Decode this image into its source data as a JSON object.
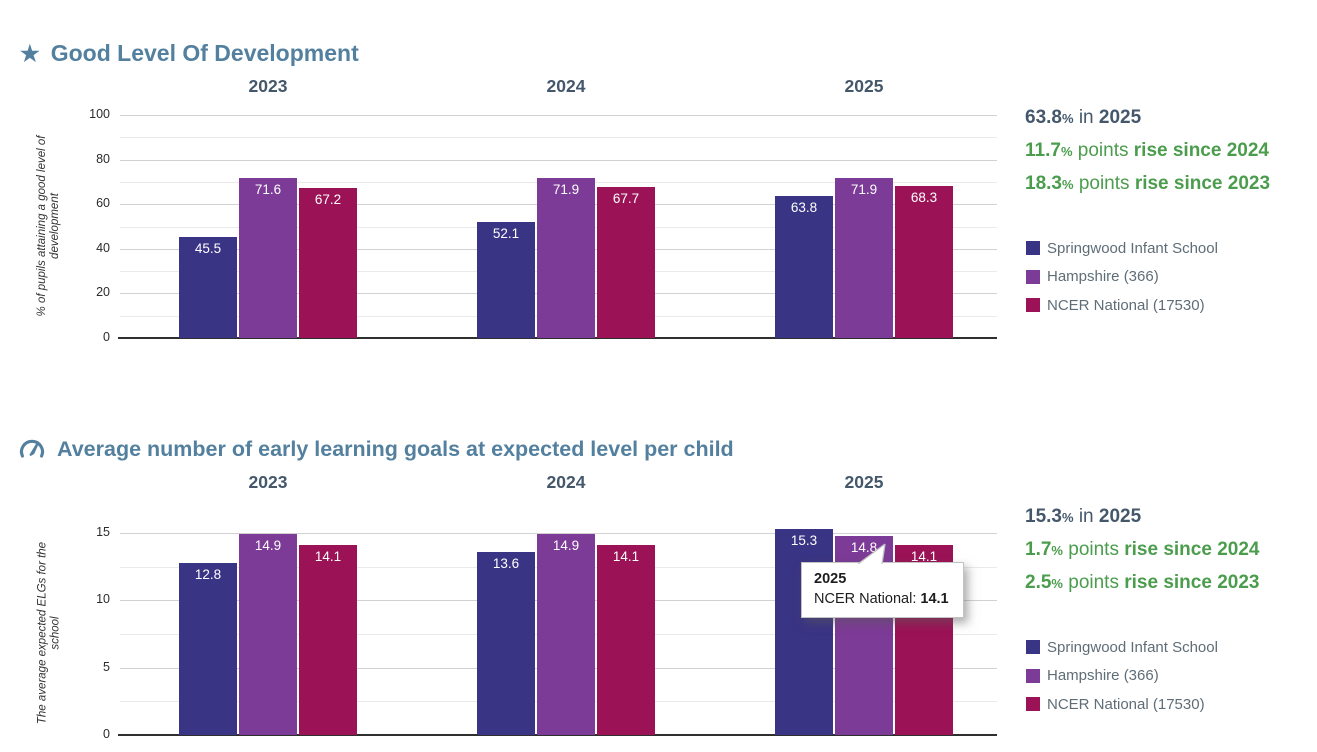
{
  "chart_data": [
    {
      "type": "bar",
      "title": "Good Level Of Development",
      "icon": "star-icon",
      "ylabel": "% of pupils attaining a good level of development",
      "categories": [
        "2023",
        "2024",
        "2025"
      ],
      "series": [
        {
          "name": "Springwood Infant School",
          "color": "#3a3484",
          "values": [
            45.5,
            52.1,
            63.8
          ]
        },
        {
          "name": "Hampshire (366)",
          "color": "#7c3b96",
          "values": [
            71.6,
            71.9,
            71.9
          ]
        },
        {
          "name": "NCER National (17530)",
          "color": "#9b1356",
          "values": [
            67.2,
            67.7,
            68.3
          ]
        }
      ],
      "ylim": [
        0,
        100
      ],
      "yticks": [
        0,
        20,
        40,
        60,
        80,
        100
      ],
      "grid": true,
      "legend_position": "right",
      "stats": [
        {
          "num": "63.8",
          "pct": "%",
          "mid": " in ",
          "strong": "2025",
          "style": "slate"
        },
        {
          "num": "11.7",
          "pct": "%",
          "mid": " points ",
          "strong": "rise since 2024",
          "style": "green"
        },
        {
          "num": "18.3",
          "pct": "%",
          "mid": " points ",
          "strong": "rise since 2023",
          "style": "green"
        }
      ]
    },
    {
      "type": "bar",
      "title": "Average number of early learning goals at expected level per child",
      "icon": "gauge-icon",
      "ylabel": "The average expected ELGs for the school",
      "categories": [
        "2023",
        "2024",
        "2025"
      ],
      "series": [
        {
          "name": "Springwood Infant School",
          "color": "#3a3484",
          "values": [
            12.8,
            13.6,
            15.3
          ]
        },
        {
          "name": "Hampshire (366)",
          "color": "#7c3b96",
          "values": [
            14.9,
            14.9,
            14.8
          ]
        },
        {
          "name": "NCER National (17530)",
          "color": "#9b1356",
          "values": [
            14.1,
            14.1,
            14.1
          ]
        }
      ],
      "ylim": [
        0,
        15
      ],
      "yticks": [
        0,
        5,
        10,
        15
      ],
      "grid": true,
      "legend_position": "right",
      "stats": [
        {
          "num": "15.3",
          "pct": "%",
          "mid": " in ",
          "strong": "2025",
          "style": "slate"
        },
        {
          "num": "1.7",
          "pct": "%",
          "mid": " points ",
          "strong": "rise since 2024",
          "style": "green"
        },
        {
          "num": "2.5",
          "pct": "%",
          "mid": " points ",
          "strong": "rise since 2023",
          "style": "green"
        }
      ],
      "tooltip": {
        "year": "2025",
        "label": "NCER National:",
        "value": "14.1"
      }
    }
  ]
}
